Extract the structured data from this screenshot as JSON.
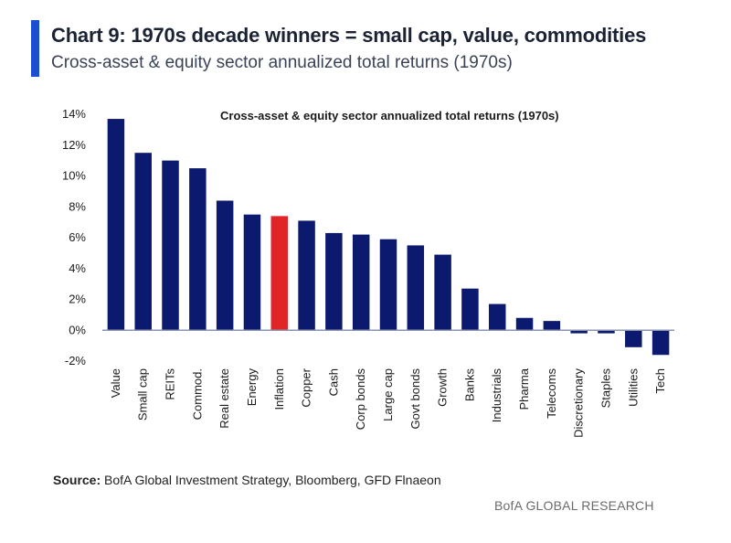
{
  "header": {
    "title": "Chart 9: 1970s decade winners = small cap, value, commodities",
    "subtitle": "Cross-asset & equity sector annualized total returns (1970s)"
  },
  "footer": {
    "source_label": "Source:",
    "source_text": " BofA Global Investment Strategy, Bloomberg, GFD Flnaeon",
    "brand": "BofA GLOBAL RESEARCH"
  },
  "colors": {
    "bar": "#0b1a6e",
    "highlight": "#e02428",
    "axis": "#8a96b0"
  },
  "chart_data": {
    "type": "bar",
    "title": "Cross-asset & equity sector annualized total returns (1970s)",
    "xlabel": "",
    "ylabel": "",
    "ylim": [
      -2,
      14
    ],
    "yticks": [
      -2,
      0,
      2,
      4,
      6,
      8,
      10,
      12,
      14
    ],
    "ytick_labels": [
      "-2%",
      "0%",
      "2%",
      "4%",
      "6%",
      "8%",
      "10%",
      "12%",
      "14%"
    ],
    "grid": false,
    "highlight_category": "Inflation",
    "categories": [
      "Value",
      "Small cap",
      "REITs",
      "Commod.",
      "Real estate",
      "Energy",
      "Inflation",
      "Copper",
      "Cash",
      "Corp bonds",
      "Large cap",
      "Govt bonds",
      "Growth",
      "Banks",
      "Industrials",
      "Pharma",
      "Telecoms",
      "Discretionary",
      "Staples",
      "Utilities",
      "Tech"
    ],
    "values": [
      13.7,
      11.5,
      11.0,
      10.5,
      8.4,
      7.5,
      7.4,
      7.1,
      6.3,
      6.2,
      5.9,
      5.5,
      4.9,
      2.7,
      1.7,
      0.8,
      0.6,
      -0.2,
      -0.2,
      -1.1,
      -1.6
    ]
  }
}
